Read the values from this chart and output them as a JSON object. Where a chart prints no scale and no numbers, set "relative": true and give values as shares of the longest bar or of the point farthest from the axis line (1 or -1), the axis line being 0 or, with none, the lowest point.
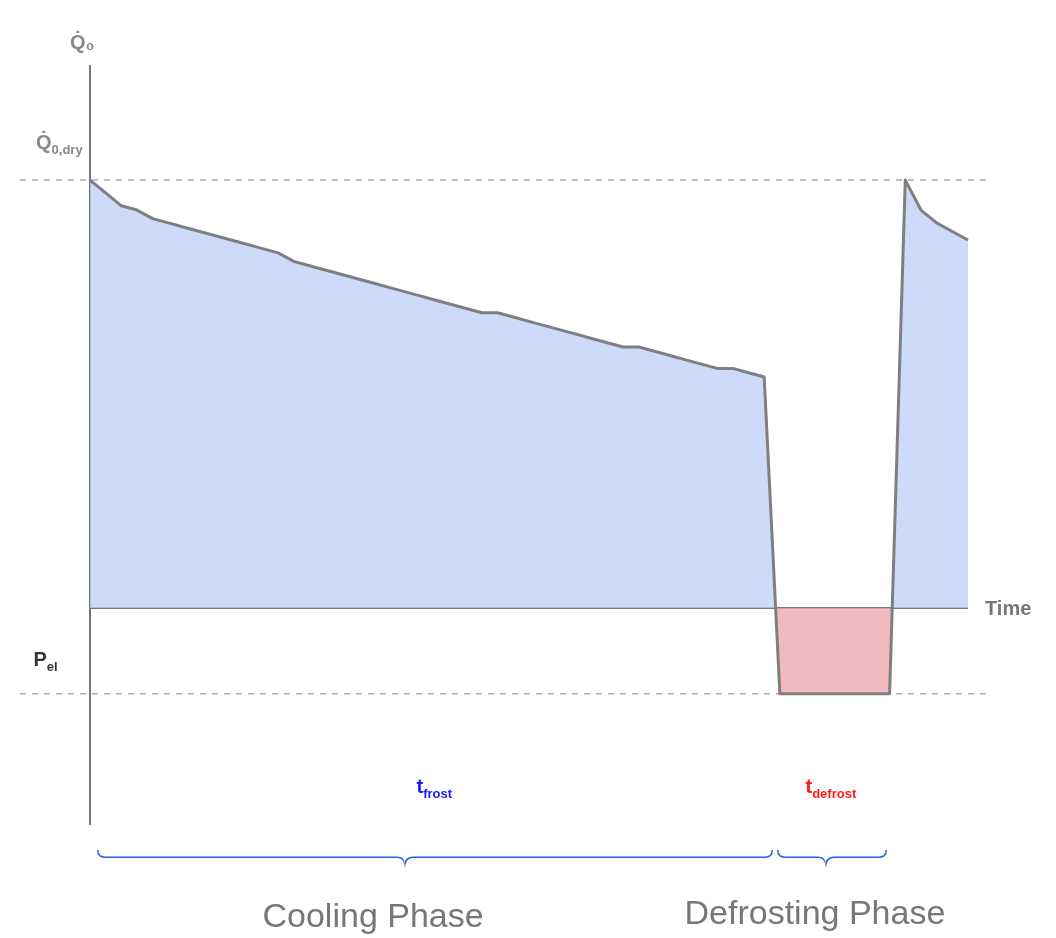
{
  "chart_data": {
    "type": "area",
    "xlabel": "Time",
    "relative": true,
    "tick_labels": false,
    "categories": [
      null,
      null,
      null,
      null,
      null,
      null,
      null,
      null,
      null,
      null,
      null,
      null,
      null,
      null,
      null,
      null,
      null,
      null,
      null,
      null,
      null,
      null,
      null,
      null,
      null,
      null,
      null,
      null,
      null,
      null,
      null,
      null,
      null,
      null,
      null,
      null,
      null,
      null,
      null,
      null,
      null,
      null,
      null,
      null,
      null,
      null,
      null,
      null,
      null,
      null,
      null,
      null,
      null,
      null,
      null,
      null,
      null
    ],
    "series": [
      {
        "color": "#7f7f7f",
        "values": [
          1,
          0.97,
          0.94,
          0.93,
          0.91,
          0.9,
          0.89,
          0.88,
          0.87,
          0.86,
          0.85,
          0.84,
          0.83,
          0.81,
          0.8,
          0.79,
          0.78,
          0.77,
          0.76,
          0.75,
          0.74,
          0.73,
          0.72,
          0.71,
          0.7,
          0.69,
          0.69,
          0.68,
          0.67,
          0.66,
          0.65,
          0.64,
          0.63,
          0.62,
          0.61,
          0.61,
          0.6,
          0.59,
          0.58,
          0.57,
          0.56,
          0.56,
          0.55,
          0.54,
          -0.2,
          -0.2,
          -0.2,
          -0.2,
          -0.2,
          -0.2,
          -0.2,
          -0.2,
          1,
          0.93,
          0.9,
          0.88,
          0.86
        ]
      }
    ],
    "ref_lines": [
      {
        "axis": "y",
        "value": 1,
        "label": "Q̇$_{0,dry}$",
        "line_style": "dashed",
        "color": "#aaaaaa"
      },
      {
        "axis": "y",
        "value": -0.2,
        "label": "P$_{el}$",
        "line_style": "dashed",
        "color": "#aaaaaa"
      }
    ],
    "annotations": [
      "Q̇₀",
      "t$_{frost}$",
      "t$_{defrost}$",
      "Cooling Phase",
      "Defrosting Phase"
    ]
  }
}
